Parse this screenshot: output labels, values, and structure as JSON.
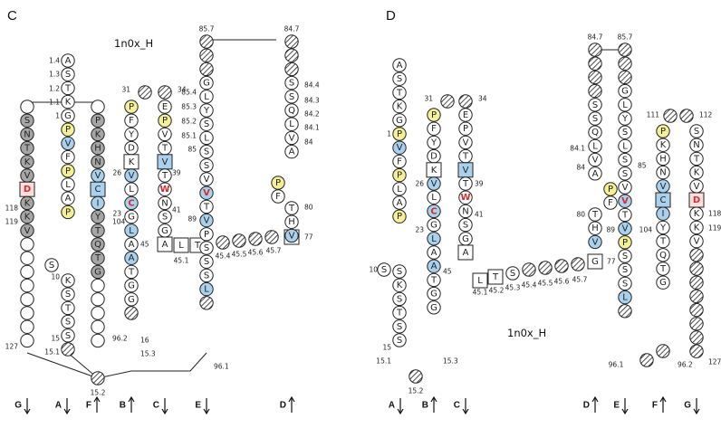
{
  "panels": [
    {
      "letter": "C",
      "title": "1n0x_H",
      "strands": [
        {
          "name": "G",
          "dir": "down"
        },
        {
          "name": "A",
          "dir": "down"
        },
        {
          "name": "F",
          "dir": "up"
        },
        {
          "name": "B",
          "dir": "up"
        },
        {
          "name": "C",
          "dir": "down"
        },
        {
          "name": "E",
          "dir": "down"
        },
        {
          "name": "D",
          "dir": "up"
        }
      ],
      "labels": [
        "1.4",
        "1.3",
        "1.2",
        "1.1",
        "1",
        "118",
        "119",
        "127",
        "104",
        "10",
        "15",
        "15.1",
        "15.2",
        "96.2",
        "96.1",
        "26",
        "39",
        "23",
        "41",
        "45",
        "16",
        "15.3",
        "31",
        "34",
        "85.7",
        "85.4",
        "85.3",
        "85.2",
        "85.1",
        "85",
        "89",
        "45.1",
        "45.4",
        "45.5",
        "45.6",
        "45.7",
        "84.7",
        "84.4",
        "84.3",
        "84.2",
        "84.1",
        "84",
        "80",
        "77"
      ],
      "columns": [
        {
          "residues": [
            "S",
            "N",
            "T",
            "K",
            "V",
            "D",
            "K",
            "K",
            "V"
          ],
          "mark": [
            0,
            0,
            0,
            0,
            0,
            0,
            0,
            0,
            0
          ]
        },
        {
          "residues": [
            "A",
            "S",
            "T",
            "K",
            "G",
            "P",
            "V",
            "F",
            "P",
            "L",
            "A",
            "P",
            "S",
            "K",
            "S",
            "T",
            "S",
            "S"
          ]
        },
        {
          "residues": [
            "G",
            "T",
            "P",
            "S",
            "T",
            "S",
            "T",
            "K",
            "S",
            "S",
            "L",
            "A",
            "P",
            "V",
            "S",
            "S"
          ]
        },
        {
          "residues": [
            "P",
            "K",
            "H",
            "N",
            "V",
            "C",
            "I",
            "Y",
            "T",
            "Q",
            "T",
            "G"
          ]
        },
        {
          "residues": [
            "P",
            "F",
            "Y",
            "D",
            "K",
            "V",
            "L",
            "C",
            "G",
            "L",
            "A",
            "A",
            "T",
            "G",
            "G"
          ]
        },
        {
          "residues": [
            "E",
            "P",
            "V",
            "T",
            "V",
            "T",
            "W",
            "N",
            "S",
            "G",
            "A"
          ]
        },
        {
          "residues": [
            "T",
            "K",
            "G",
            "L",
            "Y",
            "S",
            "L",
            "S",
            "S",
            "V",
            "V",
            "T",
            "V",
            "P",
            "S",
            "S",
            "S",
            "L"
          ]
        },
        {
          "residues": [
            "S",
            "Q",
            "L",
            "G",
            "T",
            "Q",
            "T",
            "Y",
            "I",
            "C",
            "N",
            "V",
            "N",
            "H",
            "K",
            "P"
          ]
        },
        {
          "residues": [
            "S",
            "S",
            "Q",
            "L",
            "V",
            "A",
            "P",
            "F",
            "T",
            "H",
            "V",
            "G"
          ]
        }
      ]
    },
    {
      "letter": "D",
      "title": "1n0x_H",
      "strands": [
        {
          "name": "A",
          "dir": "down"
        },
        {
          "name": "B",
          "dir": "up"
        },
        {
          "name": "C",
          "dir": "down"
        },
        {
          "name": "D",
          "dir": "up"
        },
        {
          "name": "E",
          "dir": "down"
        },
        {
          "name": "F",
          "dir": "up"
        },
        {
          "name": "G",
          "dir": "down"
        }
      ],
      "labels": [
        "1",
        "26",
        "39",
        "23",
        "41",
        "10",
        "15",
        "15.1",
        "15.2",
        "15.3",
        "31",
        "34",
        "45",
        "45.1",
        "45.2",
        "45.3",
        "45.4",
        "45.5",
        "45.6",
        "45.7",
        "77",
        "80",
        "84",
        "84.1",
        "84.7",
        "85.7",
        "85",
        "89",
        "104",
        "96.1",
        "96.2",
        "111",
        "112",
        "118",
        "119",
        "127"
      ]
    }
  ]
}
